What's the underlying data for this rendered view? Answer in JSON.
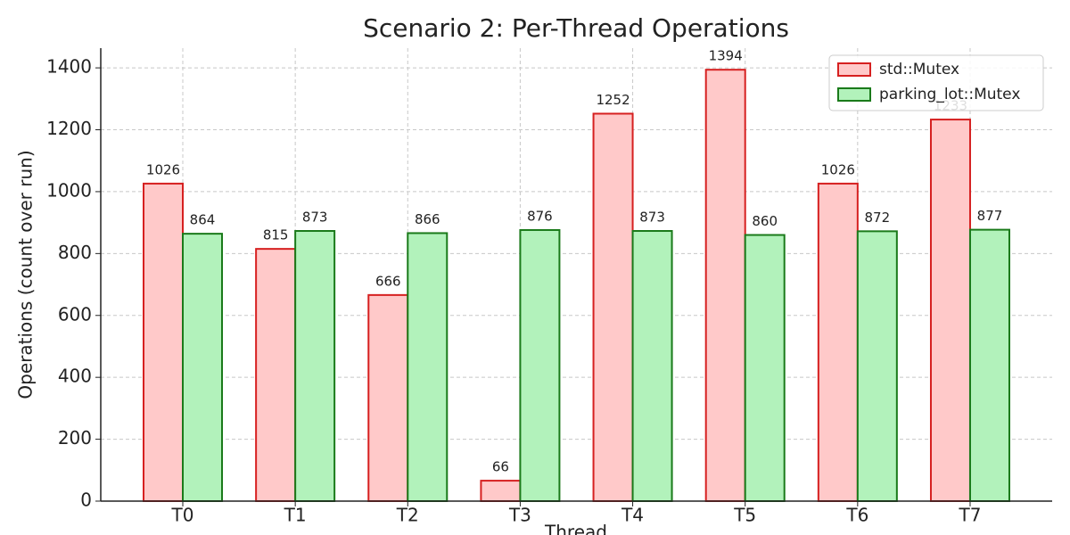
{
  "chart_data": {
    "type": "bar",
    "title": "Scenario 2: Per-Thread Operations",
    "xlabel": "Thread",
    "ylabel": "Operations (count over run)",
    "categories": [
      "T0",
      "T1",
      "T2",
      "T3",
      "T4",
      "T5",
      "T6",
      "T7"
    ],
    "series": [
      {
        "name": "std::Mutex",
        "color": "#ffc9c9",
        "edgecolor": "#d62020",
        "values": [
          1026,
          815,
          666,
          66,
          1252,
          1394,
          1026,
          1233
        ]
      },
      {
        "name": "parking_lot::Mutex",
        "color": "#b2f2bb",
        "edgecolor": "#1a7a1a",
        "values": [
          864,
          873,
          866,
          876,
          873,
          860,
          872,
          877
        ]
      }
    ],
    "ylim": [
      0,
      1463.7
    ],
    "yticks": [
      0,
      200,
      400,
      600,
      800,
      1000,
      1200,
      1400
    ],
    "grid": true,
    "legend": "upper-right"
  }
}
